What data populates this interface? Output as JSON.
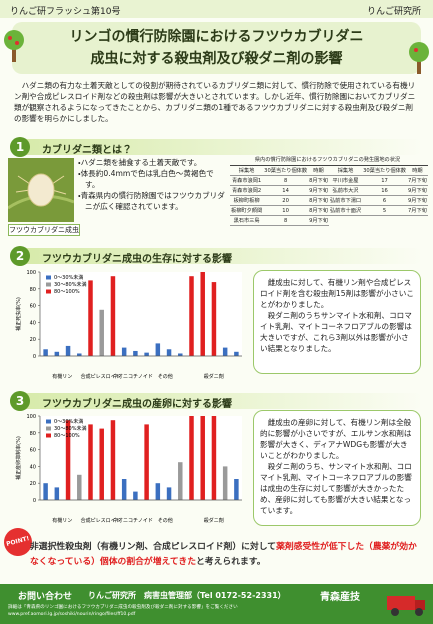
{
  "header": {
    "issue": "りんご研フラッシュ第10号",
    "org": "りんご研究所"
  },
  "title": [
    "リンゴの慣行防除園におけるフツウカブリダニ",
    "成虫に対する殺虫剤及び殺ダニ剤の影響"
  ],
  "intro": "ハダニ類の有力な土着天敵としての役割が期待されているカブリダニ類に対して、慣行防除で使用されている有機リン剤や合成ピレスロイド剤などの殺虫剤は影響が大きいとされています。しかし近年、慣行防除園においてカブリダニ類が観察されるようになってきたことから、カブリダニ類の1種であるフツウカブリダニに対する殺虫剤及び殺ダニ剤の影響を明らかにしました。",
  "section1": {
    "number": "1",
    "heading": "カブリダニ類とは？",
    "bullets": [
      "ハダニ類を捕食する土着天敵です。",
      "体長約0.4mmで色は乳白色～黄褐色です。",
      "青森県内の慣行防除園ではフツウカブリダニが広く確認されています。"
    ],
    "photo_caption": "フツウカブリダニ成虫",
    "table": {
      "title": "県内の慣行防除園におけるフツウカブリダニの発生園地の状況",
      "headers": [
        "採集地",
        "30葉当たり個体数",
        "時期",
        "採集地",
        "30葉当たり個体数",
        "時期"
      ],
      "rows": [
        [
          "青森市浪岡1",
          "8",
          "8月下旬",
          "平川市金屋",
          "17",
          "7月下旬"
        ],
        [
          "青森市浪岡2",
          "14",
          "9月下旬",
          "弘前市大沢",
          "16",
          "9月下旬"
        ],
        [
          "板柳町板柳",
          "20",
          "8月下旬",
          "弘前市下湯口",
          "6",
          "9月下旬"
        ],
        [
          "板柳町夕顔関",
          "10",
          "8月下旬",
          "弘前市十面沢",
          "5",
          "7月下旬"
        ],
        [
          "黒石市三島",
          "8",
          "9月下旬"
        ]
      ]
    }
  },
  "section2": {
    "number": "2",
    "heading": "フツウカブリダニ成虫の生存に対する影響",
    "chart_data": {
      "type": "bar",
      "ylabel": "補正死虫率(%)",
      "ylim": [
        0,
        100
      ],
      "yticks": [
        0,
        20,
        40,
        60,
        80,
        100
      ],
      "legend": [
        {
          "label": "0～30%未満",
          "color": "#3b6fc0"
        },
        {
          "label": "30～80%未満",
          "color": "#9a9a9a"
        },
        {
          "label": "80～100%",
          "color": "#e02020"
        }
      ],
      "values": [
        8,
        5,
        12,
        3,
        90,
        55,
        95,
        10,
        6,
        4,
        15,
        8,
        3,
        95,
        100,
        88,
        10,
        5
      ],
      "colors": [
        "#3b6fc0",
        "#3b6fc0",
        "#3b6fc0",
        "#3b6fc0",
        "#e02020",
        "#9a9a9a",
        "#e02020",
        "#3b6fc0",
        "#3b6fc0",
        "#3b6fc0",
        "#3b6fc0",
        "#3b6fc0",
        "#3b6fc0",
        "#e02020",
        "#e02020",
        "#e02020",
        "#3b6fc0",
        "#3b6fc0"
      ],
      "group_labels": [
        "有機リン",
        "合成ピレスロイド",
        "ネオニコチノイド",
        "その他",
        "殺ダニ剤"
      ]
    },
    "text": [
      "雌成虫に対して、有機リン剤や合成ピレスロイド剤を含む殺虫剤15剤は影響が小さいことがわかりました。",
      "殺ダニ剤のうちサンマイト水和剤、コロマイト乳剤、マイトコーネフロアブルの影響は大きいですが、これら3剤以外は影響が小さい結果となりました。"
    ]
  },
  "section3": {
    "number": "3",
    "heading": "フツウカブリダニ成虫の産卵に対する影響",
    "chart_data": {
      "type": "bar",
      "ylabel": "補正産卵抑制率(%)",
      "ylim": [
        0,
        100
      ],
      "yticks": [
        0,
        20,
        40,
        60,
        80,
        100
      ],
      "legend": [
        {
          "label": "0～30%未満",
          "color": "#3b6fc0"
        },
        {
          "label": "30～80%未満",
          "color": "#9a9a9a"
        },
        {
          "label": "80～100%",
          "color": "#e02020"
        }
      ],
      "values": [
        20,
        15,
        95,
        30,
        90,
        85,
        95,
        25,
        10,
        90,
        20,
        15,
        45,
        100,
        100,
        100,
        40,
        25
      ],
      "colors": [
        "#3b6fc0",
        "#3b6fc0",
        "#e02020",
        "#9a9a9a",
        "#e02020",
        "#e02020",
        "#e02020",
        "#3b6fc0",
        "#3b6fc0",
        "#e02020",
        "#3b6fc0",
        "#3b6fc0",
        "#9a9a9a",
        "#e02020",
        "#e02020",
        "#e02020",
        "#9a9a9a",
        "#3b6fc0"
      ],
      "group_labels": [
        "有機リン",
        "合成ピレスロイド",
        "ネオニコチノイド",
        "その他",
        "殺ダニ剤"
      ]
    },
    "text": [
      "雌成虫の産卵に対して、有機リン剤は全般的に影響が小さいですが、エルサン水和剤は影響が大きく、ディアナWDGも影響が大きいことがわかりました。",
      "殺ダニ剤のうち、サンマイト水和剤、コロマイト乳剤、マイトコーネフロアブルの影響は成虫の生存に対して影響が大きかったため、産卵に対しても影響が大きい結果となっています。"
    ]
  },
  "point": {
    "badge": "POINT!",
    "parts": [
      "非選択性殺虫剤（有機リン剤、合成ピレスロイド剤）に対して",
      "薬剤感受性が低下した（農薬が効かなくなっている）個体の割合が増えてきた",
      "と考えられます。"
    ]
  },
  "footer": {
    "contact": "お問い合わせ",
    "dept": "りんご研究所　病害虫管理部（Tel 0172-52-2331）",
    "logo": "青森産技",
    "note": "詳細は「青森県のリンゴ園におけるフツウカブリダニ成虫の殺虫剤及び殺ダニ剤に対する影響」をご覧ください",
    "url": "www.pref.aomori.lg.jp/soshiki/nourin/ringo/files/ff10.pdf"
  }
}
